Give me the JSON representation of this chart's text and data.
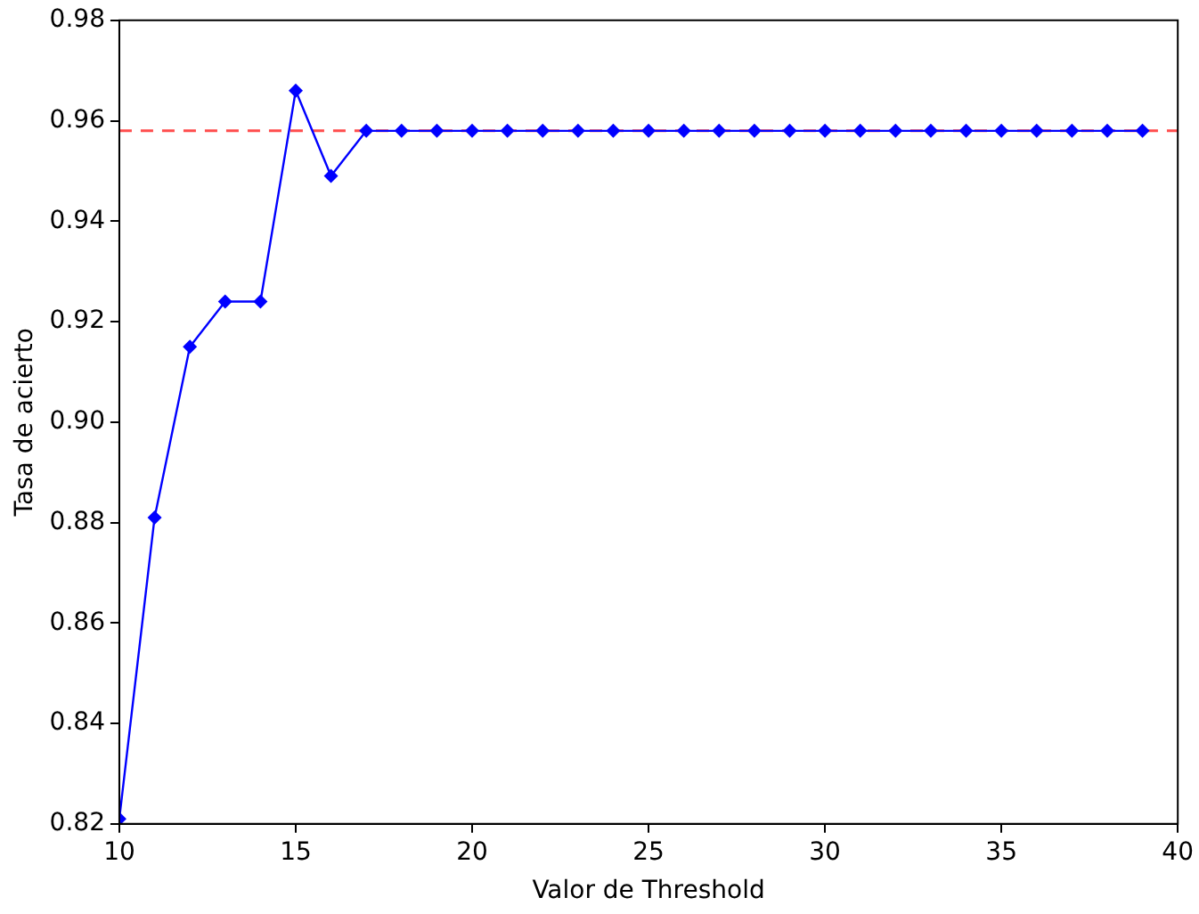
{
  "chart_data": {
    "type": "line",
    "xlabel": "Valor de Threshold",
    "ylabel": "Tasa de acierto",
    "x": [
      10,
      11,
      12,
      13,
      14,
      15,
      16,
      17,
      18,
      19,
      20,
      21,
      22,
      23,
      24,
      25,
      26,
      27,
      28,
      29,
      30,
      31,
      32,
      33,
      34,
      35,
      36,
      37,
      38,
      39
    ],
    "series": [
      {
        "color": "#0000ff",
        "values": [
          0.821,
          0.881,
          0.915,
          0.924,
          0.924,
          0.966,
          0.949,
          0.958,
          0.958,
          0.958,
          0.958,
          0.958,
          0.958,
          0.958,
          0.958,
          0.958,
          0.958,
          0.958,
          0.958,
          0.958,
          0.958,
          0.958,
          0.958,
          0.958,
          0.958,
          0.958,
          0.958,
          0.958,
          0.958,
          0.958
        ]
      }
    ],
    "xlim": [
      10,
      40
    ],
    "xticks": [
      10,
      15,
      20,
      25,
      30,
      35,
      40
    ],
    "ylim": [
      0.82,
      0.98
    ],
    "yticks": [
      0.82,
      0.84,
      0.86,
      0.88,
      {
        "value": 0.9,
        "label": "0.90"
      },
      0.92,
      0.94,
      0.96,
      0.98
    ],
    "ref_lines": [
      {
        "axis": "y",
        "value": 0.958,
        "color": "#ff4d4d",
        "line_style": "dashed"
      }
    ],
    "marker": "diamond",
    "line_style": "solid",
    "grid": false,
    "legend": false
  }
}
